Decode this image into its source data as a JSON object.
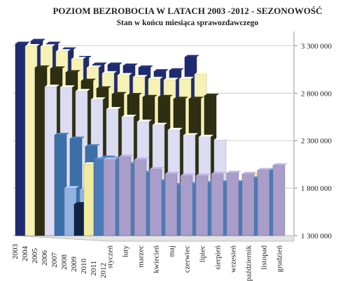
{
  "chart_data": {
    "type": "bar3d",
    "title": "POZIOM BEZROBOCIA W LATACH 2003 -2012 - SEZONOWOŚĆ",
    "subtitle": "Stan w końcu miesiąca sprawozdawczego",
    "categories": [
      "styczeń",
      "luty",
      "marzec",
      "kwiecień",
      "maj",
      "czerwiec",
      "lipiec",
      "sierpień",
      "wrzesień",
      "październik",
      "listopad",
      "grudzień"
    ],
    "series": [
      {
        "name": "2003",
        "color": "#1e2b70",
        "values": [
          3320000,
          3350000,
          3320000,
          3260000,
          3170000,
          3100000,
          3100000,
          3090000,
          3070000,
          3030000,
          3040000,
          3180000
        ]
      },
      {
        "name": "2004",
        "color": "#f6f1b4",
        "values": [
          3295000,
          3293000,
          3241000,
          3160000,
          3070000,
          3010000,
          2990000,
          2970000,
          2950000,
          2940000,
          2950000,
          3000000
        ]
      },
      {
        "name": "2005",
        "color": "#2e2e12",
        "values": [
          3070000,
          3060000,
          3020000,
          2930000,
          2850000,
          2790000,
          2780000,
          2760000,
          2760000,
          2740000,
          2740000,
          2773000
        ]
      },
      {
        "name": "2006",
        "color": "#dcdcf2",
        "values": [
          2867000,
          2861000,
          2822000,
          2734000,
          2632000,
          2551000,
          2499000,
          2466000,
          2413000,
          2357000,
          2340000,
          2309000
        ]
      },
      {
        "name": "2007",
        "color": "#3b6fa8",
        "values": [
          2360000,
          2320000,
          2240000,
          2120000,
          2010000,
          1930000,
          1870000,
          1840000,
          1810000,
          1770000,
          1740000,
          1746000
        ]
      },
      {
        "name": "2008",
        "color": "#92b2e2",
        "values": [
          1800000,
          1780000,
          1710000,
          1600000,
          1520000,
          1460000,
          1430000,
          1420000,
          1390000,
          1380000,
          1400000,
          1473000
        ]
      },
      {
        "name": "2009",
        "color": "#122242",
        "values": [
          1630000,
          1730000,
          1760000,
          1720000,
          1690000,
          1660000,
          1670000,
          1700000,
          1730000,
          1760000,
          1810000,
          1892000
        ]
      },
      {
        "name": "2010",
        "color": "#f1eba2",
        "values": [
          2050000,
          2100000,
          2080000,
          1950000,
          1860000,
          1800000,
          1790000,
          1800000,
          1810000,
          1810000,
          1860000,
          1954000
        ]
      },
      {
        "name": "2011",
        "color": "#4b7bb6",
        "values": [
          2100000,
          2110000,
          2050000,
          1960000,
          1870000,
          1830000,
          1840000,
          1850000,
          1860000,
          1860000,
          1900000,
          1982000
        ]
      },
      {
        "name": "2012",
        "color": "#a99dca",
        "values": [
          2100000,
          2130000,
          2100000,
          2000000,
          1950000,
          1930000,
          1930000,
          1950000,
          1960000,
          1950000,
          1990000,
          2040000
        ]
      }
    ],
    "ylim": [
      1300000,
      3450000
    ],
    "yticks": [
      {
        "value": 1300000,
        "label": "1 300 000"
      },
      {
        "value": 1800000,
        "label": "1 800 000"
      },
      {
        "value": 2300000,
        "label": "2 300 000"
      },
      {
        "value": 2800000,
        "label": "2 800 000"
      },
      {
        "value": 3300000,
        "label": "3 300 000"
      }
    ],
    "grid": true
  }
}
